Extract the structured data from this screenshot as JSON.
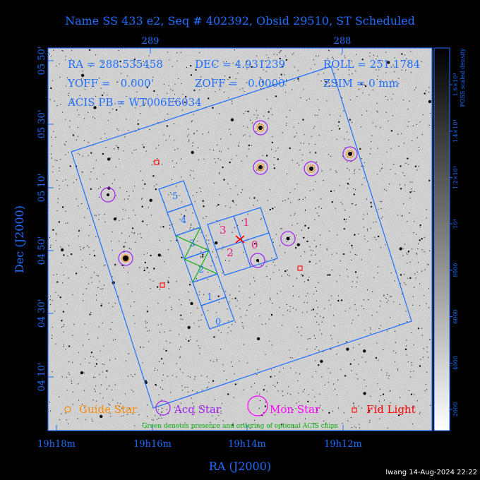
{
  "title": "Name SS 433 e2, Seq # 402392, Obsid 29510, ST Scheduled",
  "top_ticks": [
    "289",
    "288"
  ],
  "info": {
    "ra": "RA = 288.535458",
    "dec": "DEC = 4.931239",
    "roll": "ROLL = 251.1784",
    "yoff": "YOFF =   0.000'",
    "zoff": "ZOFF =   0.0000'",
    "zsim": "ZSIM = 0 mm",
    "acis_pb": "ACIS PB = WT006E6034"
  },
  "y_ticks": [
    "05 50'",
    "05 30'",
    "05 10'",
    "04 50'",
    "04 30'",
    "04 10'"
  ],
  "y_axis_label": "Dec (J2000)",
  "x_ticks": [
    "19h18m",
    "19h16m",
    "19h14m",
    "19h12m"
  ],
  "x_axis_label": "RA (J2000)",
  "chip_labels": [
    "5",
    "4",
    "3",
    "2",
    "1",
    "0"
  ],
  "aimpoint_labels": [
    "3",
    "1",
    "2",
    "0"
  ],
  "legend": {
    "guide": "Guide Star",
    "acq": "Acq Star",
    "mon": "Mon Star",
    "fid": "Fid Light",
    "note": "Green denotes presence and ordering of optional ACIS chips"
  },
  "colorbar": {
    "label": "POSS scaled density",
    "ticks": [
      "2000",
      "4000",
      "6000",
      "8000",
      "10⁴",
      "1.2×10⁴",
      "1.4×10⁴",
      "1.6×10⁴"
    ]
  },
  "footer": "lwang 14-Aug-2024 22:22",
  "colors": {
    "blue": "#1e6fff",
    "purple": "#a020f0",
    "magenta": "#ff00ff",
    "red": "#ff0000",
    "orange": "#ff8c00",
    "green": "#00c000"
  }
}
